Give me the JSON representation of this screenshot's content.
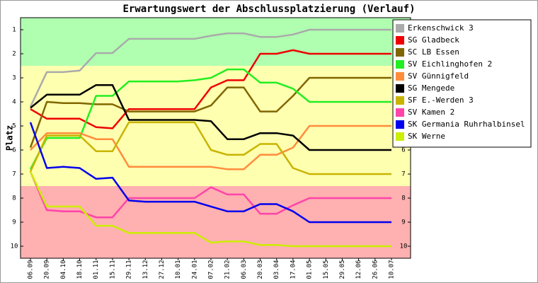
{
  "chart_data": {
    "type": "line",
    "title": "Erwartungswert der Abschlussplatzierung (Verlauf)",
    "y_label": "Platz",
    "categories": [
      "06.09",
      "20.09",
      "04.10",
      "18.10",
      "01.11",
      "15.11",
      "29.11",
      "13.12",
      "27.12",
      "10.01",
      "24.01",
      "07.02",
      "21.02",
      "06.03",
      "20.03",
      "03.04",
      "17.04",
      "01.05",
      "15.05",
      "29.05",
      "12.06",
      "26.06",
      "10.07"
    ],
    "ylim": [
      0.5,
      10.5
    ],
    "y_inverted": true,
    "yticks": [
      1,
      2,
      3,
      4,
      5,
      6,
      7,
      8,
      9,
      10
    ],
    "right_axis_ticks": true,
    "bands": [
      {
        "from": 0.5,
        "to": 2.5,
        "color": "#b0ffb0"
      },
      {
        "from": 2.5,
        "to": 7.5,
        "color": "#ffffb0"
      },
      {
        "from": 7.5,
        "to": 10.5,
        "color": "#ffb0b0"
      }
    ],
    "legend": "top-right",
    "series": [
      {
        "name": "Erkenschwick 3",
        "color": "#aaaaaa",
        "values": [
          4.2,
          2.76,
          2.76,
          2.7,
          1.97,
          1.97,
          1.38,
          1.38,
          1.38,
          1.38,
          1.38,
          1.25,
          1.15,
          1.15,
          1.3,
          1.3,
          1.2,
          1,
          1,
          1,
          1,
          1,
          1
        ]
      },
      {
        "name": "SG Gladbeck",
        "color": "#ee0000",
        "values": [
          4.3,
          4.7,
          4.7,
          4.7,
          5.05,
          5.1,
          4.3,
          4.3,
          4.3,
          4.3,
          4.3,
          3.4,
          3.1,
          3.1,
          2,
          2,
          1.85,
          2,
          2,
          2,
          2,
          2,
          2
        ]
      },
      {
        "name": "SC LB Essen",
        "color": "#806600",
        "values": [
          5.9,
          4,
          4.05,
          4.05,
          4.1,
          4.1,
          4.4,
          4.4,
          4.4,
          4.4,
          4.4,
          4.15,
          3.4,
          3.4,
          4.4,
          4.4,
          3.75,
          3,
          3,
          3,
          3,
          3,
          3
        ]
      },
      {
        "name": "SV Eichlinghofen 2",
        "color": "#22ee22",
        "values": [
          6.8,
          5.5,
          5.5,
          5.5,
          3.75,
          3.75,
          3.15,
          3.15,
          3.15,
          3.15,
          3.1,
          3,
          2.65,
          2.65,
          3.2,
          3.2,
          3.45,
          4,
          4,
          4,
          4,
          4,
          4
        ]
      },
      {
        "name": "SV Günnigfeld",
        "color": "#ff8c3c",
        "values": [
          6,
          5.3,
          5.3,
          5.3,
          5.55,
          5.55,
          6.7,
          6.7,
          6.7,
          6.7,
          6.7,
          6.7,
          6.8,
          6.8,
          6.2,
          6.2,
          5.9,
          5,
          5,
          5,
          5,
          5,
          5
        ]
      },
      {
        "name": "SG Mengede",
        "color": "#000000",
        "values": [
          4.25,
          3.7,
          3.7,
          3.7,
          3.3,
          3.3,
          4.75,
          4.75,
          4.75,
          4.75,
          4.75,
          4.8,
          5.55,
          5.55,
          5.3,
          5.3,
          5.4,
          6,
          6,
          6,
          6,
          6,
          6
        ]
      },
      {
        "name": "SF E.-Werden 3",
        "color": "#c8b400",
        "values": [
          6.9,
          5.4,
          5.4,
          5.4,
          6.05,
          6.05,
          4.85,
          4.85,
          4.85,
          4.85,
          4.85,
          6,
          6.2,
          6.2,
          5.75,
          5.75,
          6.75,
          7,
          7,
          7,
          7,
          7,
          7
        ]
      },
      {
        "name": "SV Kamen 2",
        "color": "#ff44aa",
        "values": [
          6.9,
          8.5,
          8.55,
          8.55,
          8.8,
          8.8,
          8,
          8,
          8,
          8,
          8,
          7.55,
          7.85,
          7.85,
          8.65,
          8.65,
          8.3,
          8,
          8,
          8,
          8,
          8,
          8
        ]
      },
      {
        "name": "SK Germania Ruhrhalbinsel",
        "color": "#0000ee",
        "values": [
          4.85,
          6.75,
          6.7,
          6.75,
          7.2,
          7.15,
          8.1,
          8.15,
          8.15,
          8.15,
          8.15,
          8.35,
          8.55,
          8.55,
          8.25,
          8.25,
          8.55,
          9,
          9,
          9,
          9,
          9,
          9
        ]
      },
      {
        "name": "SK Werne",
        "color": "#ccee00",
        "values": [
          6.9,
          8.35,
          8.35,
          8.35,
          9.15,
          9.15,
          9.45,
          9.45,
          9.45,
          9.45,
          9.45,
          9.85,
          9.8,
          9.8,
          9.95,
          9.95,
          10,
          10,
          10,
          10,
          10,
          10,
          10
        ]
      }
    ]
  }
}
